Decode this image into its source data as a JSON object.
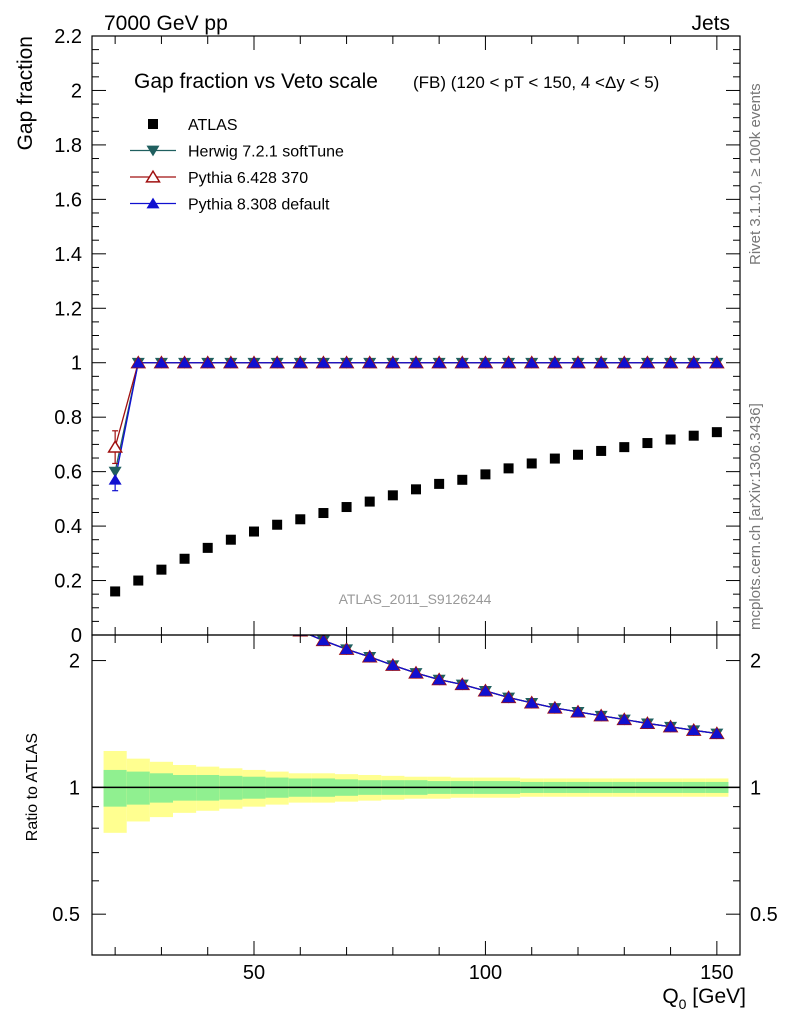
{
  "header": {
    "left": "7000 GeV pp",
    "right": "Jets"
  },
  "title": {
    "main": "Gap fraction vs Veto scale",
    "sub": "(FB) (120 < pT < 150, 4 <Δy < 5)"
  },
  "side_labels": {
    "rivet": "Rivet 3.1.10, ≥ 100k events",
    "mcplots": "mcplots.cern.ch [arXiv:1306.3436]"
  },
  "watermark": "ATLAS_2011_S9126244",
  "axes": {
    "ylabel_top": "Gap fraction",
    "ylabel_bottom": "Ratio to ATLAS",
    "xlabel": "Q",
    "xlabel_sub": "0",
    "xlabel_unit": " [GeV]"
  },
  "colors": {
    "atlas": "#000000",
    "herwig": "#1f5f5f",
    "pythia6": "#a01010",
    "pythia8": "#1010d0",
    "band_inner": "#90f090",
    "band_outer": "#ffff90"
  },
  "chart_data": {
    "type": "scatter",
    "x": [
      20,
      25,
      30,
      35,
      40,
      45,
      50,
      55,
      60,
      65,
      70,
      75,
      80,
      85,
      90,
      95,
      100,
      105,
      110,
      115,
      120,
      125,
      130,
      135,
      140,
      145,
      150
    ],
    "xlim": [
      15,
      155
    ],
    "xticks": [
      50,
      100,
      150
    ],
    "ylim_top": [
      0,
      2.2
    ],
    "yticks_top": [
      0,
      0.2,
      0.4,
      0.6,
      0.8,
      1,
      1.2,
      1.4,
      1.6,
      1.8,
      2,
      2.2
    ],
    "ylim_ratio": [
      0.4,
      2.3
    ],
    "log_ratio": true,
    "yticks_ratio": [
      0.5,
      1,
      2
    ],
    "legend": "top-left",
    "series": [
      {
        "name": "ATLAS",
        "marker": "square",
        "values": [
          0.16,
          0.2,
          0.24,
          0.28,
          0.32,
          0.35,
          0.38,
          0.405,
          0.425,
          0.448,
          0.47,
          0.49,
          0.513,
          0.535,
          0.555,
          0.57,
          0.59,
          0.612,
          0.63,
          0.648,
          0.662,
          0.676,
          0.69,
          0.705,
          0.718,
          0.732,
          0.745
        ],
        "band_inner": [
          0.1,
          0.09,
          0.08,
          0.07,
          0.07,
          0.065,
          0.06,
          0.055,
          0.05,
          0.05,
          0.045,
          0.04,
          0.04,
          0.04,
          0.035,
          0.035,
          0.035,
          0.035,
          0.03,
          0.03,
          0.03,
          0.03,
          0.03,
          0.03,
          0.03,
          0.03,
          0.03
        ],
        "band_outer": [
          0.22,
          0.17,
          0.15,
          0.13,
          0.12,
          0.11,
          0.1,
          0.09,
          0.08,
          0.08,
          0.075,
          0.07,
          0.065,
          0.06,
          0.06,
          0.055,
          0.055,
          0.055,
          0.05,
          0.05,
          0.05,
          0.05,
          0.05,
          0.05,
          0.05,
          0.05,
          0.05
        ]
      },
      {
        "name": "Herwig 7.2.1 softTune",
        "marker": "triangle-down",
        "values": [
          0.6,
          1,
          1,
          1,
          1,
          1,
          1,
          1,
          1,
          1,
          1,
          1,
          1,
          1,
          1,
          1,
          1,
          1,
          1,
          1,
          1,
          1,
          1,
          1,
          1,
          1,
          1
        ]
      },
      {
        "name": "Pythia 6.428 370",
        "marker": "triangle-up-open",
        "values": [
          0.69,
          1,
          1,
          1,
          1,
          1,
          1,
          1,
          1,
          1,
          1,
          1,
          1,
          1,
          1,
          1,
          1,
          1,
          1,
          1,
          1,
          1,
          1,
          1,
          1,
          1,
          1
        ],
        "errors": [
          0.06,
          0,
          0,
          0,
          0,
          0,
          0,
          0,
          0,
          0,
          0,
          0,
          0,
          0,
          0,
          0,
          0,
          0,
          0,
          0,
          0,
          0,
          0,
          0,
          0,
          0,
          0
        ]
      },
      {
        "name": "Pythia 8.308 default",
        "marker": "triangle-up",
        "values": [
          0.57,
          1,
          1,
          1,
          1,
          1,
          1,
          1,
          1,
          1,
          1,
          1,
          1,
          1,
          1,
          1,
          1,
          1,
          1,
          1,
          1,
          1,
          1,
          1,
          1,
          1,
          1
        ],
        "errors": [
          0.04,
          0,
          0,
          0,
          0,
          0,
          0,
          0,
          0,
          0,
          0,
          0,
          0,
          0,
          0,
          0,
          0,
          0,
          0,
          0,
          0,
          0,
          0,
          0,
          0,
          0,
          0
        ]
      }
    ]
  }
}
